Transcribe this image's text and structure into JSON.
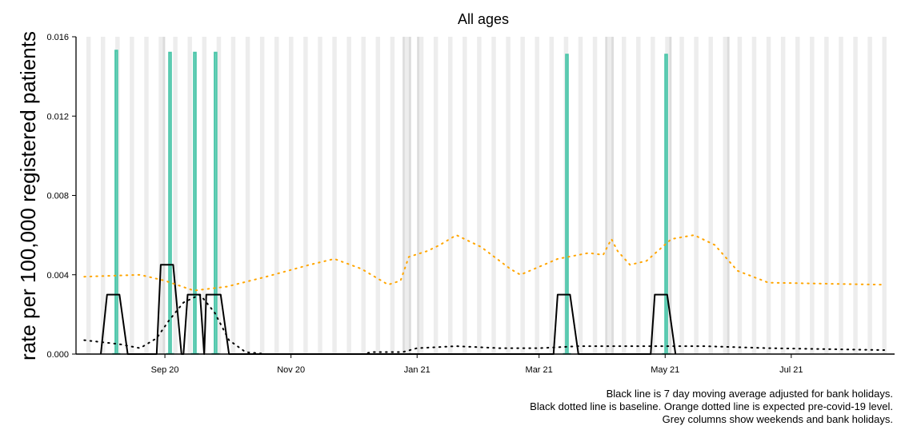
{
  "chart_data": {
    "type": "line",
    "title": "All ages",
    "ylabel": "rate per 100,000 registered patients",
    "xlabel": "",
    "ylim": [
      0,
      0.016
    ],
    "xlim": [
      "2020-07-20",
      "2021-08-20"
    ],
    "y_ticks": [
      "0.000",
      "0.004",
      "0.008",
      "0.012",
      "0.016"
    ],
    "y_tick_values": [
      0,
      0.004,
      0.008,
      0.012,
      0.016
    ],
    "x_ticks": [
      {
        "label": "Sep 20",
        "date": "2020-09-01"
      },
      {
        "label": "Nov 20",
        "date": "2020-11-01"
      },
      {
        "label": "Jan 21",
        "date": "2021-01-01"
      },
      {
        "label": "Mar 21",
        "date": "2021-03-01"
      },
      {
        "label": "May 21",
        "date": "2021-05-01"
      },
      {
        "label": "Jul 21",
        "date": "2021-07-01"
      }
    ],
    "grey_columns": "weekends and bank holidays",
    "bank_holidays": [
      "2020-08-31",
      "2020-12-25",
      "2020-12-28",
      "2021-01-01",
      "2021-04-02",
      "2021-04-05",
      "2021-05-03",
      "2021-05-31"
    ],
    "series": [
      {
        "kind": "daily_spikes",
        "color": "#4dc6aa",
        "points": [
          {
            "x": "2020-08-08",
            "y": 0.0153
          },
          {
            "x": "2020-09-03",
            "y": 0.0152
          },
          {
            "x": "2020-09-15",
            "y": 0.0152
          },
          {
            "x": "2020-09-25",
            "y": 0.0152
          },
          {
            "x": "2021-03-14",
            "y": 0.0151
          },
          {
            "x": "2021-05-01",
            "y": 0.0151
          }
        ]
      },
      {
        "kind": "moving_average",
        "color": "#000000",
        "points": [
          {
            "x": "2020-08-01",
            "y": 0
          },
          {
            "x": "2020-08-04",
            "y": 0.003
          },
          {
            "x": "2020-08-10",
            "y": 0.003
          },
          {
            "x": "2020-08-14",
            "y": 0
          },
          {
            "x": "2020-08-28",
            "y": 0
          },
          {
            "x": "2020-08-30",
            "y": 0.0045
          },
          {
            "x": "2020-09-05",
            "y": 0.0045
          },
          {
            "x": "2020-09-09",
            "y": 0
          },
          {
            "x": "2020-09-10",
            "y": 0
          },
          {
            "x": "2020-09-12",
            "y": 0.003
          },
          {
            "x": "2020-09-18",
            "y": 0.003
          },
          {
            "x": "2020-09-20",
            "y": 0
          },
          {
            "x": "2020-09-21",
            "y": 0.003
          },
          {
            "x": "2020-09-28",
            "y": 0.003
          },
          {
            "x": "2020-10-02",
            "y": 0
          },
          {
            "x": "2021-03-08",
            "y": 0
          },
          {
            "x": "2021-03-10",
            "y": 0.003
          },
          {
            "x": "2021-03-16",
            "y": 0.003
          },
          {
            "x": "2021-03-20",
            "y": 0
          },
          {
            "x": "2021-04-24",
            "y": 0
          },
          {
            "x": "2021-04-26",
            "y": 0.003
          },
          {
            "x": "2021-05-02",
            "y": 0.003
          },
          {
            "x": "2021-05-06",
            "y": 0
          }
        ]
      },
      {
        "kind": "baseline",
        "color": "#000000",
        "points": [
          {
            "x": "2020-07-24",
            "y": 0.0007
          },
          {
            "x": "2020-08-10",
            "y": 0.0005
          },
          {
            "x": "2020-08-20",
            "y": 0.0003
          },
          {
            "x": "2020-08-28",
            "y": 0.0008
          },
          {
            "x": "2020-09-03",
            "y": 0.0017
          },
          {
            "x": "2020-09-10",
            "y": 0.0026
          },
          {
            "x": "2020-09-18",
            "y": 0.003
          },
          {
            "x": "2020-09-25",
            "y": 0.0021
          },
          {
            "x": "2020-10-02",
            "y": 0.0007
          },
          {
            "x": "2020-10-10",
            "y": 0.0001
          },
          {
            "x": "2020-10-20",
            "y": 0
          },
          {
            "x": "2020-12-06",
            "y": 0
          },
          {
            "x": "2020-12-10",
            "y": 0.0001
          },
          {
            "x": "2020-12-25",
            "y": 0.0001
          },
          {
            "x": "2021-01-01",
            "y": 0.0003
          },
          {
            "x": "2021-01-20",
            "y": 0.0004
          },
          {
            "x": "2021-02-10",
            "y": 0.0003
          },
          {
            "x": "2021-03-01",
            "y": 0.0003
          },
          {
            "x": "2021-03-20",
            "y": 0.0004
          },
          {
            "x": "2021-04-15",
            "y": 0.0004
          },
          {
            "x": "2021-05-20",
            "y": 0.0004
          },
          {
            "x": "2021-06-20",
            "y": 0.0003
          },
          {
            "x": "2021-08-15",
            "y": 0.0002
          }
        ]
      },
      {
        "kind": "expected",
        "color": "#ffa500",
        "points": [
          {
            "x": "2020-07-24",
            "y": 0.0039
          },
          {
            "x": "2020-08-20",
            "y": 0.004
          },
          {
            "x": "2020-09-01",
            "y": 0.0037
          },
          {
            "x": "2020-09-15",
            "y": 0.0032
          },
          {
            "x": "2020-10-01",
            "y": 0.0034
          },
          {
            "x": "2020-10-20",
            "y": 0.0039
          },
          {
            "x": "2020-11-10",
            "y": 0.0045
          },
          {
            "x": "2020-11-22",
            "y": 0.0048
          },
          {
            "x": "2020-12-05",
            "y": 0.0043
          },
          {
            "x": "2020-12-18",
            "y": 0.0035
          },
          {
            "x": "2020-12-24",
            "y": 0.0037
          },
          {
            "x": "2020-12-28",
            "y": 0.0049
          },
          {
            "x": "2021-01-06",
            "y": 0.0052
          },
          {
            "x": "2021-01-12",
            "y": 0.0055
          },
          {
            "x": "2021-01-20",
            "y": 0.006
          },
          {
            "x": "2021-02-01",
            "y": 0.0054
          },
          {
            "x": "2021-02-15",
            "y": 0.0043
          },
          {
            "x": "2021-02-20",
            "y": 0.004
          },
          {
            "x": "2021-03-10",
            "y": 0.0048
          },
          {
            "x": "2021-03-25",
            "y": 0.0051
          },
          {
            "x": "2021-04-01",
            "y": 0.005
          },
          {
            "x": "2021-04-05",
            "y": 0.0058
          },
          {
            "x": "2021-04-08",
            "y": 0.0052
          },
          {
            "x": "2021-04-14",
            "y": 0.0045
          },
          {
            "x": "2021-04-22",
            "y": 0.0047
          },
          {
            "x": "2021-05-04",
            "y": 0.0058
          },
          {
            "x": "2021-05-15",
            "y": 0.006
          },
          {
            "x": "2021-05-25",
            "y": 0.0055
          },
          {
            "x": "2021-06-05",
            "y": 0.0042
          },
          {
            "x": "2021-06-20",
            "y": 0.0036
          },
          {
            "x": "2021-08-15",
            "y": 0.0035
          }
        ]
      }
    ],
    "caption_lines": [
      "Black line is 7 day moving average adjusted for bank holidays.",
      "Black dotted line is baseline. Orange dotted line is expected pre-covid-19 level.",
      "Grey columns show weekends and bank holidays."
    ]
  }
}
